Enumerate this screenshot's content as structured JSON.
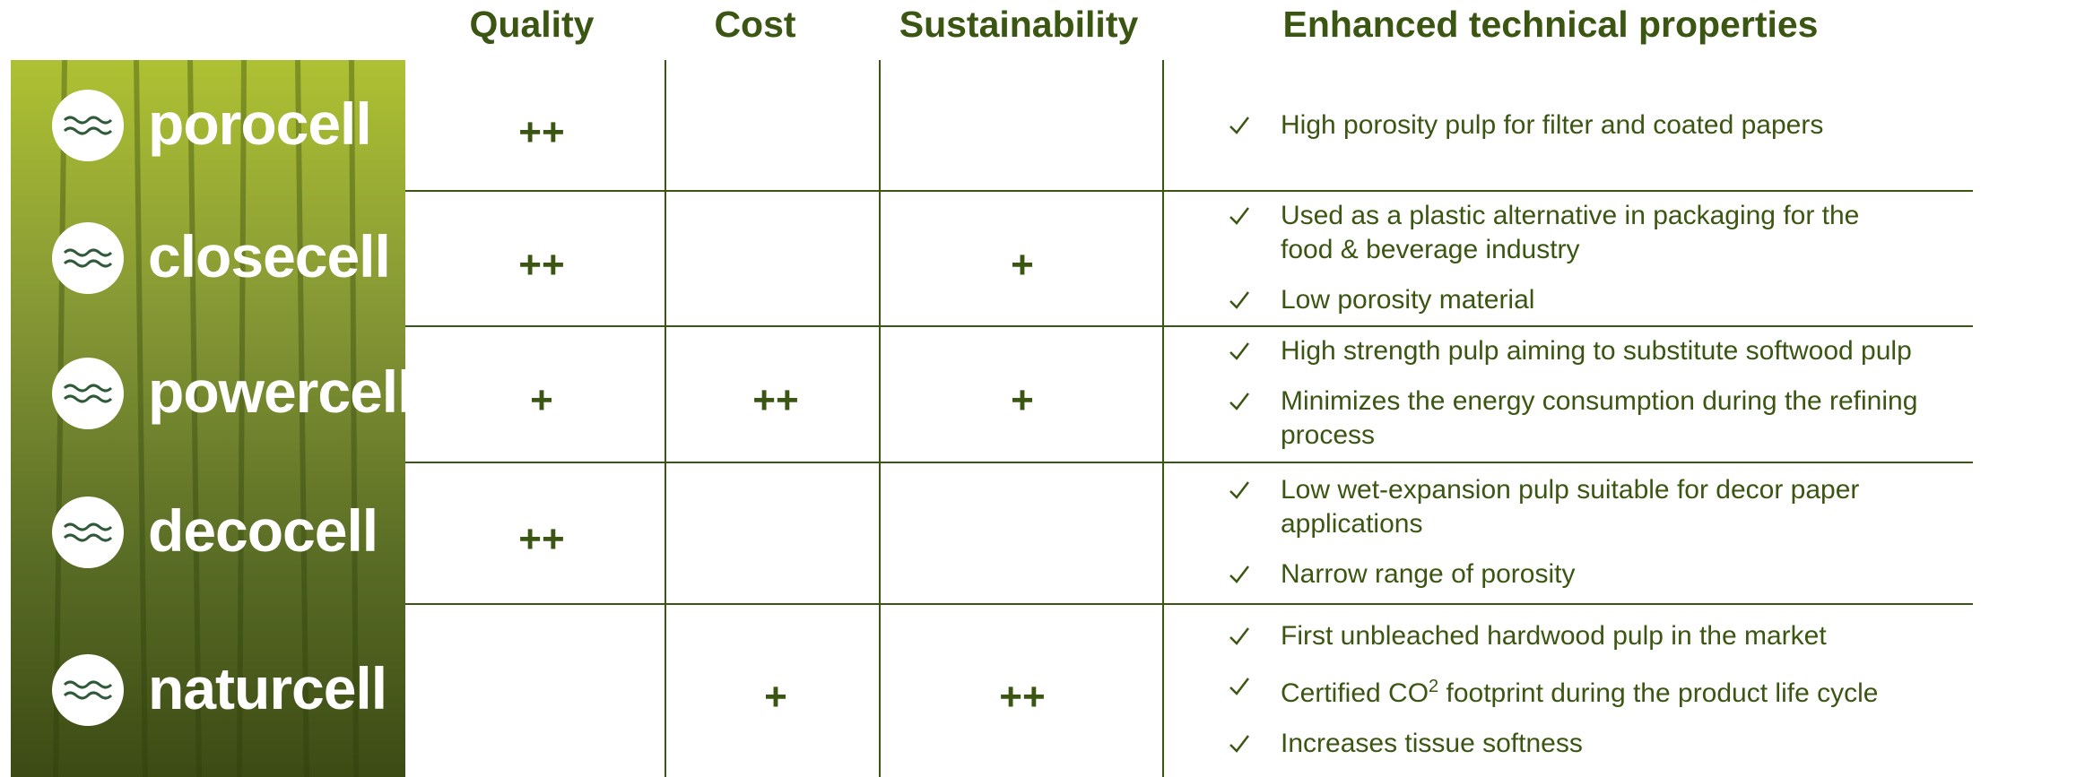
{
  "header": {
    "columns": [
      "Quality",
      "Cost",
      "Sustainability",
      "Enhanced technical properties"
    ]
  },
  "rows": [
    {
      "name": "porocell",
      "quality": "++",
      "cost": null,
      "sustainability": null,
      "properties": [
        "High porosity pulp for filter and coated papers"
      ]
    },
    {
      "name": "closecell",
      "quality": "++",
      "cost": null,
      "sustainability": "+",
      "properties": [
        "Used as a plastic alternative in packaging for the food & beverage industry",
        "Low porosity material"
      ]
    },
    {
      "name": "powercell",
      "quality": "+",
      "cost": "++",
      "sustainability": "+",
      "properties": [
        "High strength pulp aiming to substitute softwood pulp",
        "Minimizes the energy consumption during the refining process"
      ]
    },
    {
      "name": "decocell",
      "quality": "++",
      "cost": null,
      "sustainability": null,
      "properties": [
        "Low wet-expansion pulp suitable for decor paper applications",
        "Narrow range of porosity"
      ]
    },
    {
      "name": "naturcell",
      "quality": null,
      "cost": "+",
      "sustainability": "++",
      "properties": [
        "First unbleached hardwood pulp in the market",
        {
          "text": "Certified CO",
          "sup": "2",
          "rest": " footprint during the product life cycle"
        },
        "Increases tissue softness"
      ]
    }
  ]
}
